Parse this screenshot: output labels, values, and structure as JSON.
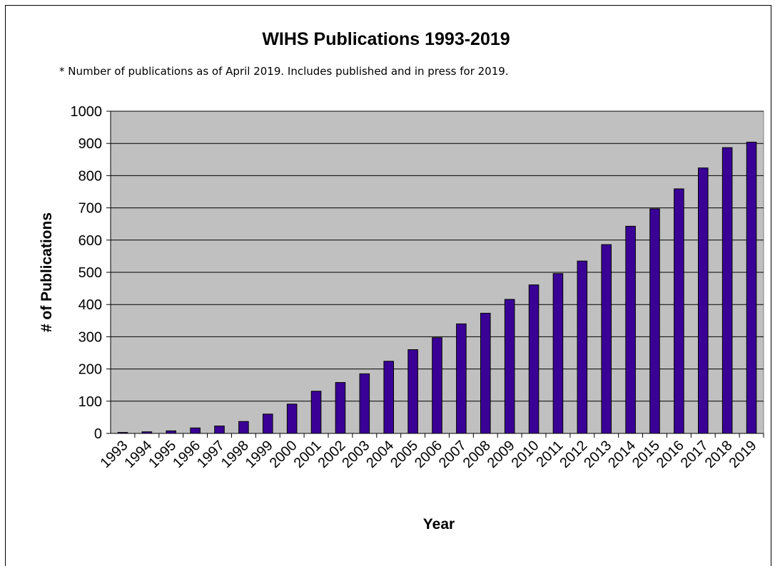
{
  "chart_data": {
    "type": "bar",
    "title": "WIHS Publications 1993-2019",
    "subtitle": "* Number of publications as of April 2019. Includes published and in press for 2019.",
    "xlabel": "Year",
    "ylabel": "# of Publications",
    "ylim": [
      0,
      1000
    ],
    "yticks": [
      "0",
      "100",
      "200",
      "300",
      "400",
      "500",
      "600",
      "700",
      "800",
      "900",
      "1000"
    ],
    "categories": [
      "1993",
      "1994",
      "1995",
      "1996",
      "1997",
      "1998",
      "1999",
      "2000",
      "2001",
      "2002",
      "2003",
      "2004",
      "2005",
      "2006",
      "2007",
      "2008",
      "2009",
      "2010",
      "2011",
      "2012",
      "2013",
      "2014",
      "2015",
      "2016",
      "2017",
      "2018",
      "2019"
    ],
    "values": [
      3,
      5,
      8,
      17,
      23,
      37,
      60,
      91,
      131,
      158,
      185,
      224,
      260,
      297,
      340,
      373,
      416,
      461,
      496,
      535,
      586,
      643,
      697,
      759,
      824,
      887,
      904
    ],
    "grid": true,
    "legend": "none",
    "colors": {
      "bar": "#3a0096",
      "plot_background": "#c0c0c0",
      "gridline": "#000000"
    }
  }
}
